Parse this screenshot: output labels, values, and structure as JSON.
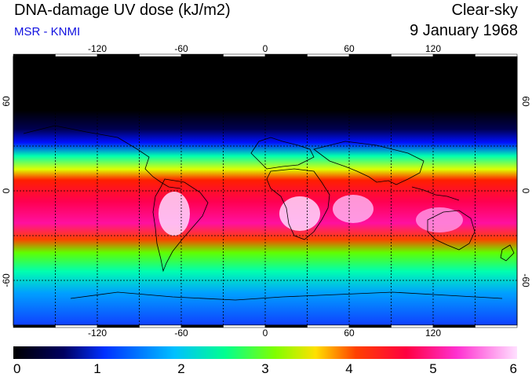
{
  "header": {
    "title": "DNA-damage UV dose (kJ/m2)",
    "subtitle": "MSR - KNMI",
    "mode": "Clear-sky",
    "date": "9 January 1968"
  },
  "map": {
    "lon_ticks": [
      "-120",
      "-60",
      "0",
      "60",
      "120"
    ],
    "lat_ticks": [
      "60",
      "0",
      "-60"
    ],
    "lon_grid": [
      -150,
      -120,
      -90,
      -60,
      -30,
      0,
      30,
      60,
      90,
      120,
      150
    ],
    "lat_grid": [
      60,
      30,
      0,
      -30,
      -60
    ],
    "lon_range": [
      -180,
      180
    ],
    "lat_range": [
      -90,
      90
    ],
    "grid": "dotted",
    "coastlines": true
  },
  "colorbar": {
    "min": 0,
    "max": 6,
    "tick_labels": [
      "0",
      "1",
      "2",
      "3",
      "4",
      "5",
      "6"
    ],
    "colors": [
      "#000000",
      "#000060",
      "#0030ff",
      "#00c0ff",
      "#00ff90",
      "#80ff00",
      "#ffe000",
      "#ff4000",
      "#ff0040",
      "#ff30d0",
      "#ffe0ff"
    ]
  }
}
